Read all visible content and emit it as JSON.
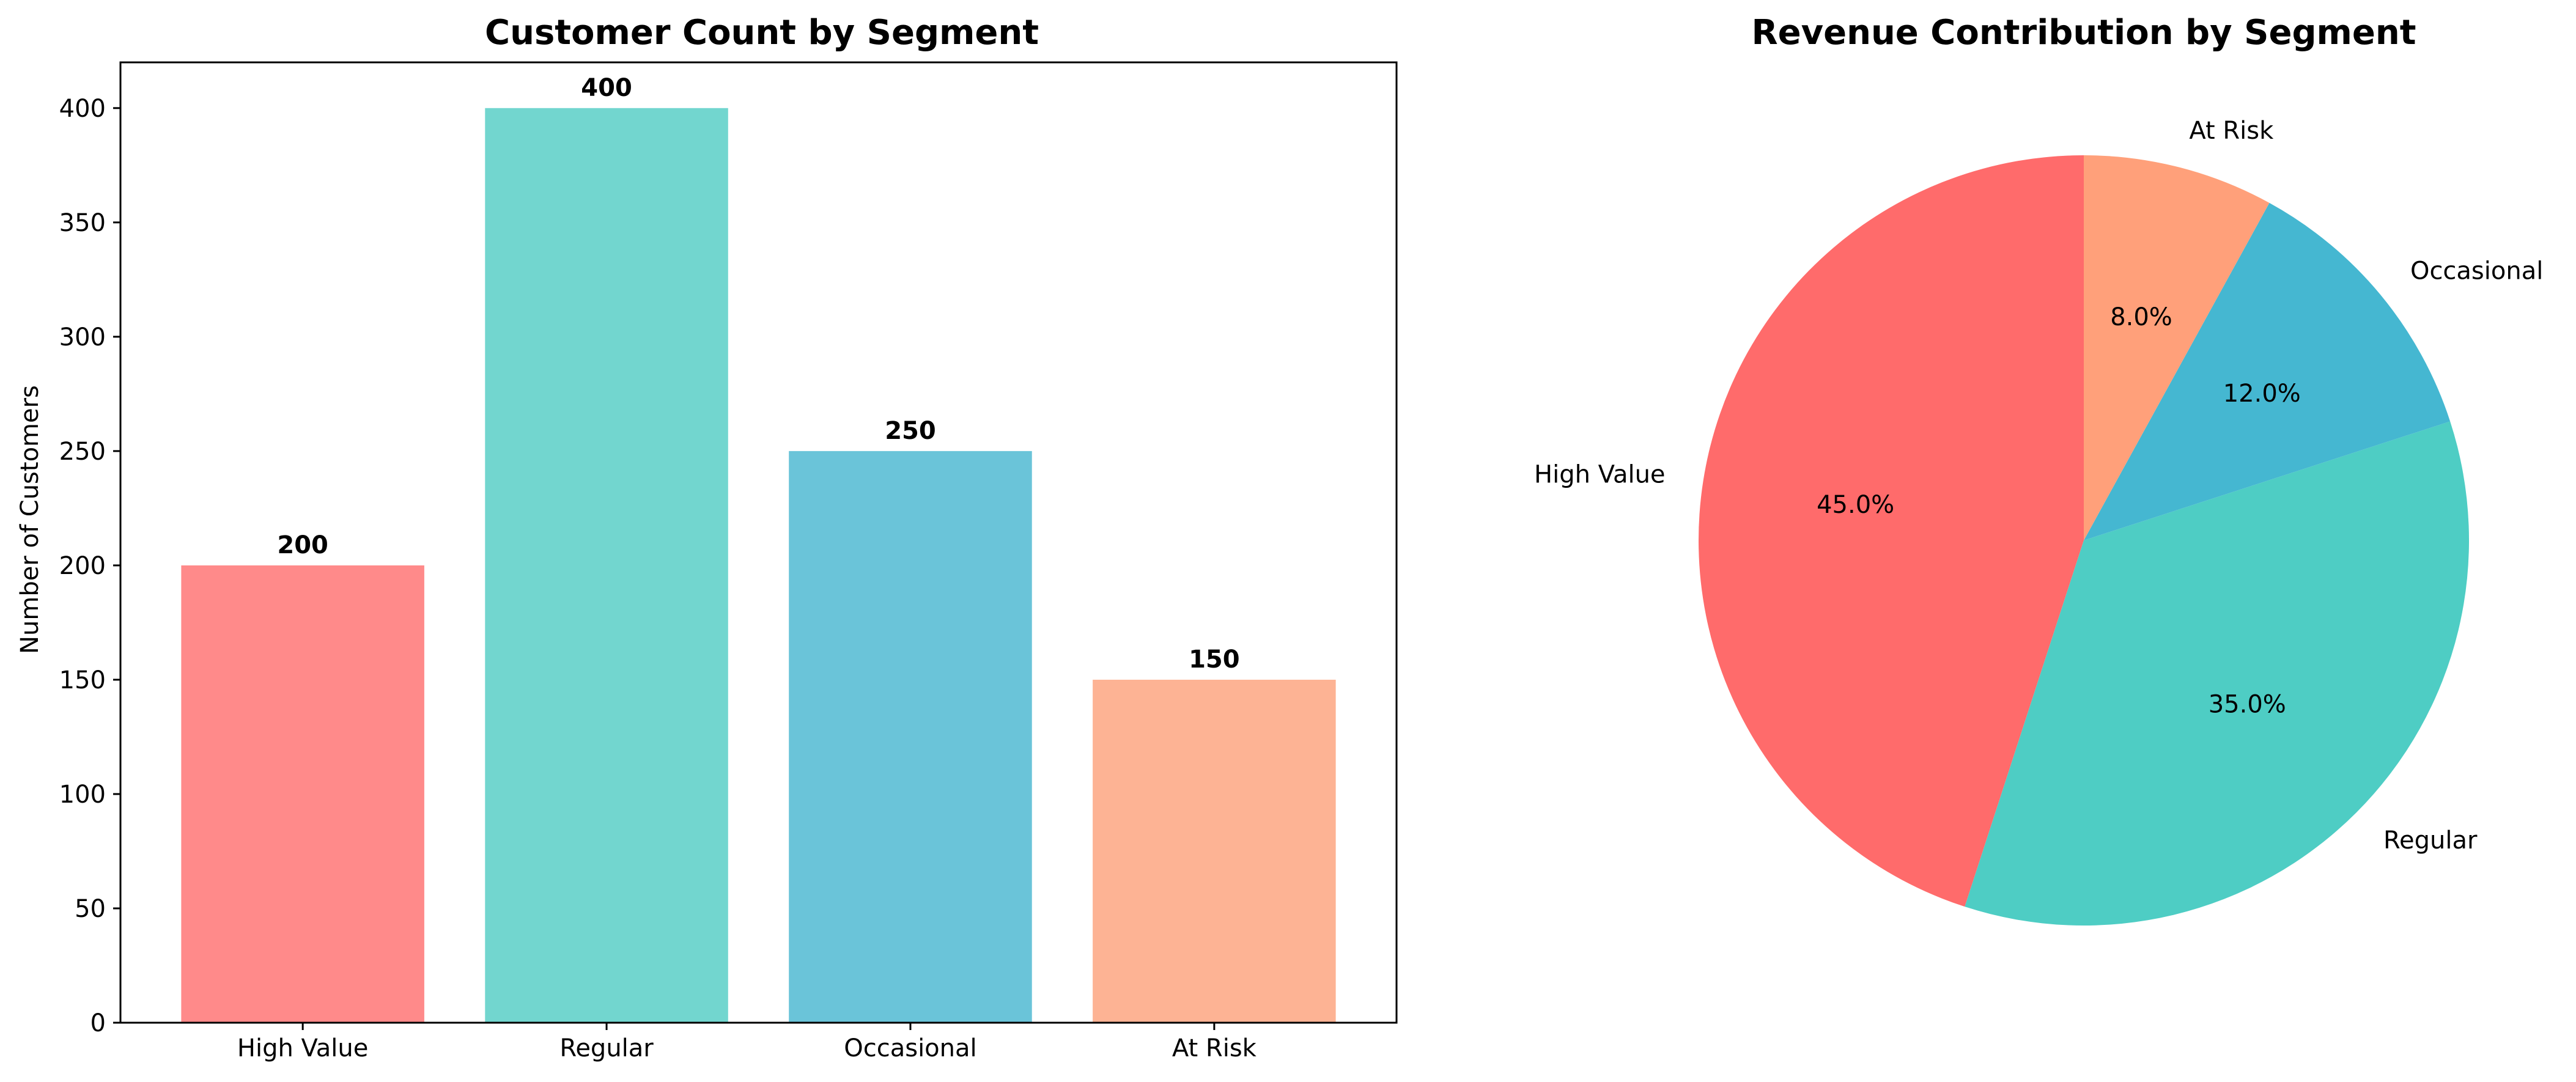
{
  "chart_data": [
    {
      "type": "bar",
      "title": "Customer Count by Segment",
      "xlabel": "",
      "ylabel": "Number of Customers",
      "categories": [
        "High Value",
        "Regular",
        "Occasional",
        "At Risk"
      ],
      "values": [
        200,
        400,
        250,
        150
      ],
      "value_labels": [
        "200",
        "400",
        "250",
        "150"
      ],
      "colors": [
        "#FF8A8A",
        "#72D6CF",
        "#6AC4D9",
        "#FDB394"
      ],
      "ylim": [
        0,
        420
      ],
      "yticks": [
        0,
        50,
        100,
        150,
        200,
        250,
        300,
        350,
        400
      ],
      "grid": false,
      "legend": "none"
    },
    {
      "type": "pie",
      "title": "Revenue Contribution by Segment",
      "labels": [
        "High Value",
        "Regular",
        "Occasional",
        "At Risk"
      ],
      "values": [
        45.0,
        35.0,
        12.0,
        8.0
      ],
      "pct_labels": [
        "45.0%",
        "35.0%",
        "12.0%",
        "8.0%"
      ],
      "colors": [
        "#FF6B6B",
        "#4ECDC4",
        "#45B7D1",
        "#FFA07A"
      ],
      "start_angle_deg": 90,
      "direction": "counterclockwise",
      "legend": "none"
    }
  ]
}
